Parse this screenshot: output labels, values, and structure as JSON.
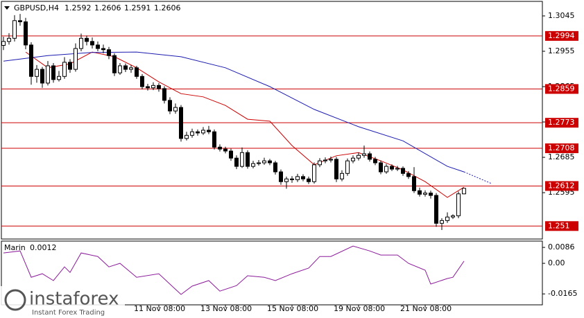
{
  "chart_data": {
    "type": "candlestick",
    "title": "GBPUSD,H4",
    "open": [
      1.297,
      1.298,
      1.2988,
      1.3033,
      1.303,
      1.2971,
      1.2891,
      1.2909,
      1.2874,
      1.2918,
      1.2883,
      1.2891,
      1.2927,
      1.2909,
      1.2962,
      1.2988,
      1.298,
      1.2971,
      1.2962,
      1.2959,
      1.2944,
      1.29,
      1.2918,
      1.2909,
      1.2913,
      1.2891,
      1.2865,
      1.2862,
      1.2868,
      1.286,
      1.283,
      1.2803,
      1.2812,
      1.2733,
      1.2741,
      1.275,
      1.2747,
      1.2754,
      1.275,
      1.2711,
      1.2706,
      1.2701,
      1.2683,
      1.2662,
      1.2697,
      1.2662,
      1.2669,
      1.2671,
      1.2676,
      1.2671,
      1.2648,
      1.2623,
      1.263,
      1.2628,
      1.2636,
      1.263,
      1.2623,
      1.2666,
      1.2676,
      1.2678,
      1.268,
      1.263,
      1.2644,
      1.2676,
      1.2683,
      1.269,
      1.2694,
      1.268,
      1.2671,
      1.2648,
      1.2662,
      1.2655,
      1.2657,
      1.2644,
      1.2636,
      1.26,
      1.2591,
      1.2594,
      1.2588,
      1.2517,
      1.2524,
      1.2533,
      1.2536,
      1.2592
    ],
    "high": [
      1.2992,
      1.3001,
      1.3047,
      1.305,
      1.304,
      1.2978,
      1.292,
      1.2915,
      1.293,
      1.2925,
      1.2905,
      1.294,
      1.2935,
      1.2975,
      1.3,
      1.2995,
      1.299,
      1.298,
      1.2972,
      1.2966,
      1.295,
      1.2925,
      1.2924,
      1.292,
      1.2918,
      1.2897,
      1.2872,
      1.2876,
      1.2874,
      1.2866,
      1.2838,
      1.2822,
      1.2818,
      1.275,
      1.2758,
      1.2756,
      1.2762,
      1.2765,
      1.2756,
      1.2718,
      1.2712,
      1.2707,
      1.269,
      1.271,
      1.2703,
      1.2676,
      1.2678,
      1.2684,
      1.2681,
      1.2676,
      1.2654,
      1.2636,
      1.2637,
      1.2643,
      1.2642,
      1.2636,
      1.2672,
      1.2683,
      1.2685,
      1.2687,
      1.2686,
      1.2652,
      1.2682,
      1.269,
      1.2697,
      1.2715,
      1.27,
      1.2686,
      1.2677,
      1.2668,
      1.2667,
      1.2663,
      1.2662,
      1.265,
      1.266,
      1.2608,
      1.2601,
      1.26,
      1.2594,
      1.253,
      1.2545,
      1.254,
      1.2598,
      1.2606
    ],
    "low": [
      1.2958,
      1.2972,
      1.298,
      1.302,
      1.296,
      1.287,
      1.2875,
      1.2862,
      1.2868,
      1.2875,
      1.2878,
      1.2885,
      1.29,
      1.2903,
      1.2955,
      1.297,
      1.2962,
      1.2955,
      1.295,
      1.2935,
      1.2892,
      1.2895,
      1.2902,
      1.29,
      1.2885,
      1.2858,
      1.2855,
      1.2856,
      1.2852,
      1.2822,
      1.2795,
      1.2796,
      1.2725,
      1.2728,
      1.2735,
      1.274,
      1.2742,
      1.2744,
      1.2705,
      1.27,
      1.2695,
      1.2676,
      1.2655,
      1.2658,
      1.2656,
      1.2657,
      1.2664,
      1.2666,
      1.2665,
      1.2641,
      1.2615,
      1.2605,
      1.262,
      1.2622,
      1.2624,
      1.2617,
      1.2618,
      1.266,
      1.267,
      1.2672,
      1.2622,
      1.2624,
      1.2638,
      1.267,
      1.2677,
      1.2684,
      1.2674,
      1.2665,
      1.2642,
      1.2643,
      1.265,
      1.265,
      1.2638,
      1.263,
      1.2594,
      1.2585,
      1.2585,
      1.258,
      1.2508,
      1.25,
      1.2518,
      1.2528,
      1.253,
      1.2591
    ],
    "close": [
      1.298,
      1.2988,
      1.3033,
      1.303,
      1.2971,
      1.2891,
      1.2909,
      1.2874,
      1.2918,
      1.2883,
      1.2891,
      1.2927,
      1.2909,
      1.2962,
      1.2988,
      1.298,
      1.2971,
      1.2962,
      1.2959,
      1.2944,
      1.29,
      1.2918,
      1.2909,
      1.2913,
      1.2891,
      1.2865,
      1.2862,
      1.2868,
      1.286,
      1.283,
      1.2803,
      1.2812,
      1.2733,
      1.2741,
      1.275,
      1.2747,
      1.2754,
      1.275,
      1.2711,
      1.2706,
      1.2701,
      1.2683,
      1.2662,
      1.2697,
      1.2662,
      1.2669,
      1.2671,
      1.2676,
      1.2671,
      1.2648,
      1.2623,
      1.263,
      1.2628,
      1.2636,
      1.263,
      1.2623,
      1.2666,
      1.2676,
      1.2678,
      1.268,
      1.263,
      1.2644,
      1.2676,
      1.2683,
      1.269,
      1.2694,
      1.268,
      1.2671,
      1.2648,
      1.2662,
      1.2655,
      1.2657,
      1.2644,
      1.2636,
      1.26,
      1.2591,
      1.2594,
      1.2588,
      1.2517,
      1.2524,
      1.2533,
      1.2536,
      1.2592,
      1.2606
    ],
    "xlim": [
      -0.375,
      97.125
    ],
    "xticks": [
      {
        "value": 28,
        "label": "11 Nov 08:00"
      },
      {
        "value": 40,
        "label": "13 Nov 08:00"
      },
      {
        "value": 52,
        "label": "15 Nov 08:00"
      },
      {
        "value": 64,
        "label": "19 Nov 08:00"
      },
      {
        "value": 76,
        "label": "21 Nov 08:00"
      }
    ],
    "ylim": [
      1.2477,
      1.3082
    ],
    "yticks": [
      1.3045,
      1.2955,
      1.2865,
      1.2775,
      1.2685,
      1.2595
    ],
    "levels": [
      1.2994,
      1.2859,
      1.2773,
      1.2708,
      1.2612,
      1.251
    ],
    "level_color": "#cc0000",
    "up_color": "#ffffff",
    "down_color": "#000000",
    "lines": [
      {
        "color": "#cc0000",
        "style": "solid",
        "x": [
          4,
          8,
          12,
          16,
          20,
          24,
          28,
          32,
          36,
          40,
          44,
          48,
          52,
          56,
          60,
          64,
          68,
          72,
          76,
          80,
          83
        ],
        "values": [
          1.2953,
          1.2913,
          1.2923,
          1.2953,
          1.2941,
          1.2913,
          1.2877,
          1.2847,
          1.2839,
          1.2817,
          1.2782,
          1.2777,
          1.2715,
          1.2666,
          1.2689,
          1.2697,
          1.2676,
          1.2653,
          1.2623,
          1.2583,
          1.2609
        ]
      },
      {
        "color": "#1a1ab0",
        "style": "solid",
        "x": [
          0,
          8,
          16,
          24,
          32,
          40,
          48,
          56,
          64,
          72,
          80,
          83
        ],
        "values": [
          1.293,
          1.2944,
          1.2952,
          1.2953,
          1.2941,
          1.2913,
          1.2865,
          1.2807,
          1.2763,
          1.2727,
          1.2662,
          1.2648
        ]
      },
      {
        "color": "#1a1ab0",
        "style": "dotted",
        "x": [
          83,
          88
        ],
        "values": [
          1.2648,
          1.2618
        ]
      }
    ],
    "indicator": {
      "name": "Marin",
      "color": "#8b1a9a",
      "x": [
        0,
        3,
        5,
        7,
        9,
        11,
        12,
        14,
        17,
        19,
        21,
        24,
        28,
        32,
        34,
        37,
        39,
        42,
        44,
        47,
        49,
        52,
        55,
        57,
        59,
        63,
        66,
        68,
        71,
        73,
        76,
        77,
        80,
        81,
        83
      ],
      "values": [
        0.0056,
        0.0067,
        -0.0075,
        -0.0056,
        -0.0093,
        -0.0019,
        -0.0049,
        0.0056,
        0.0037,
        -0.0019,
        0.0,
        -0.0075,
        -0.0056,
        -0.0168,
        -0.0123,
        -0.0093,
        -0.015,
        -0.012,
        -0.0067,
        -0.0075,
        -0.0093,
        -0.0056,
        -0.0026,
        0.0037,
        0.0037,
        0.0093,
        0.0067,
        0.0045,
        0.0045,
        0.0,
        -0.0037,
        -0.0112,
        -0.0082,
        -0.0075,
        0.0012
      ],
      "ylim": [
        -0.0224,
        0.012
      ],
      "yticks": [
        0.0086,
        {
          "value": 0,
          "label": "0.00"
        },
        -0.0165
      ]
    },
    "branding": {
      "name": "instaforex",
      "tagline": "Instant Forex Trading"
    }
  }
}
